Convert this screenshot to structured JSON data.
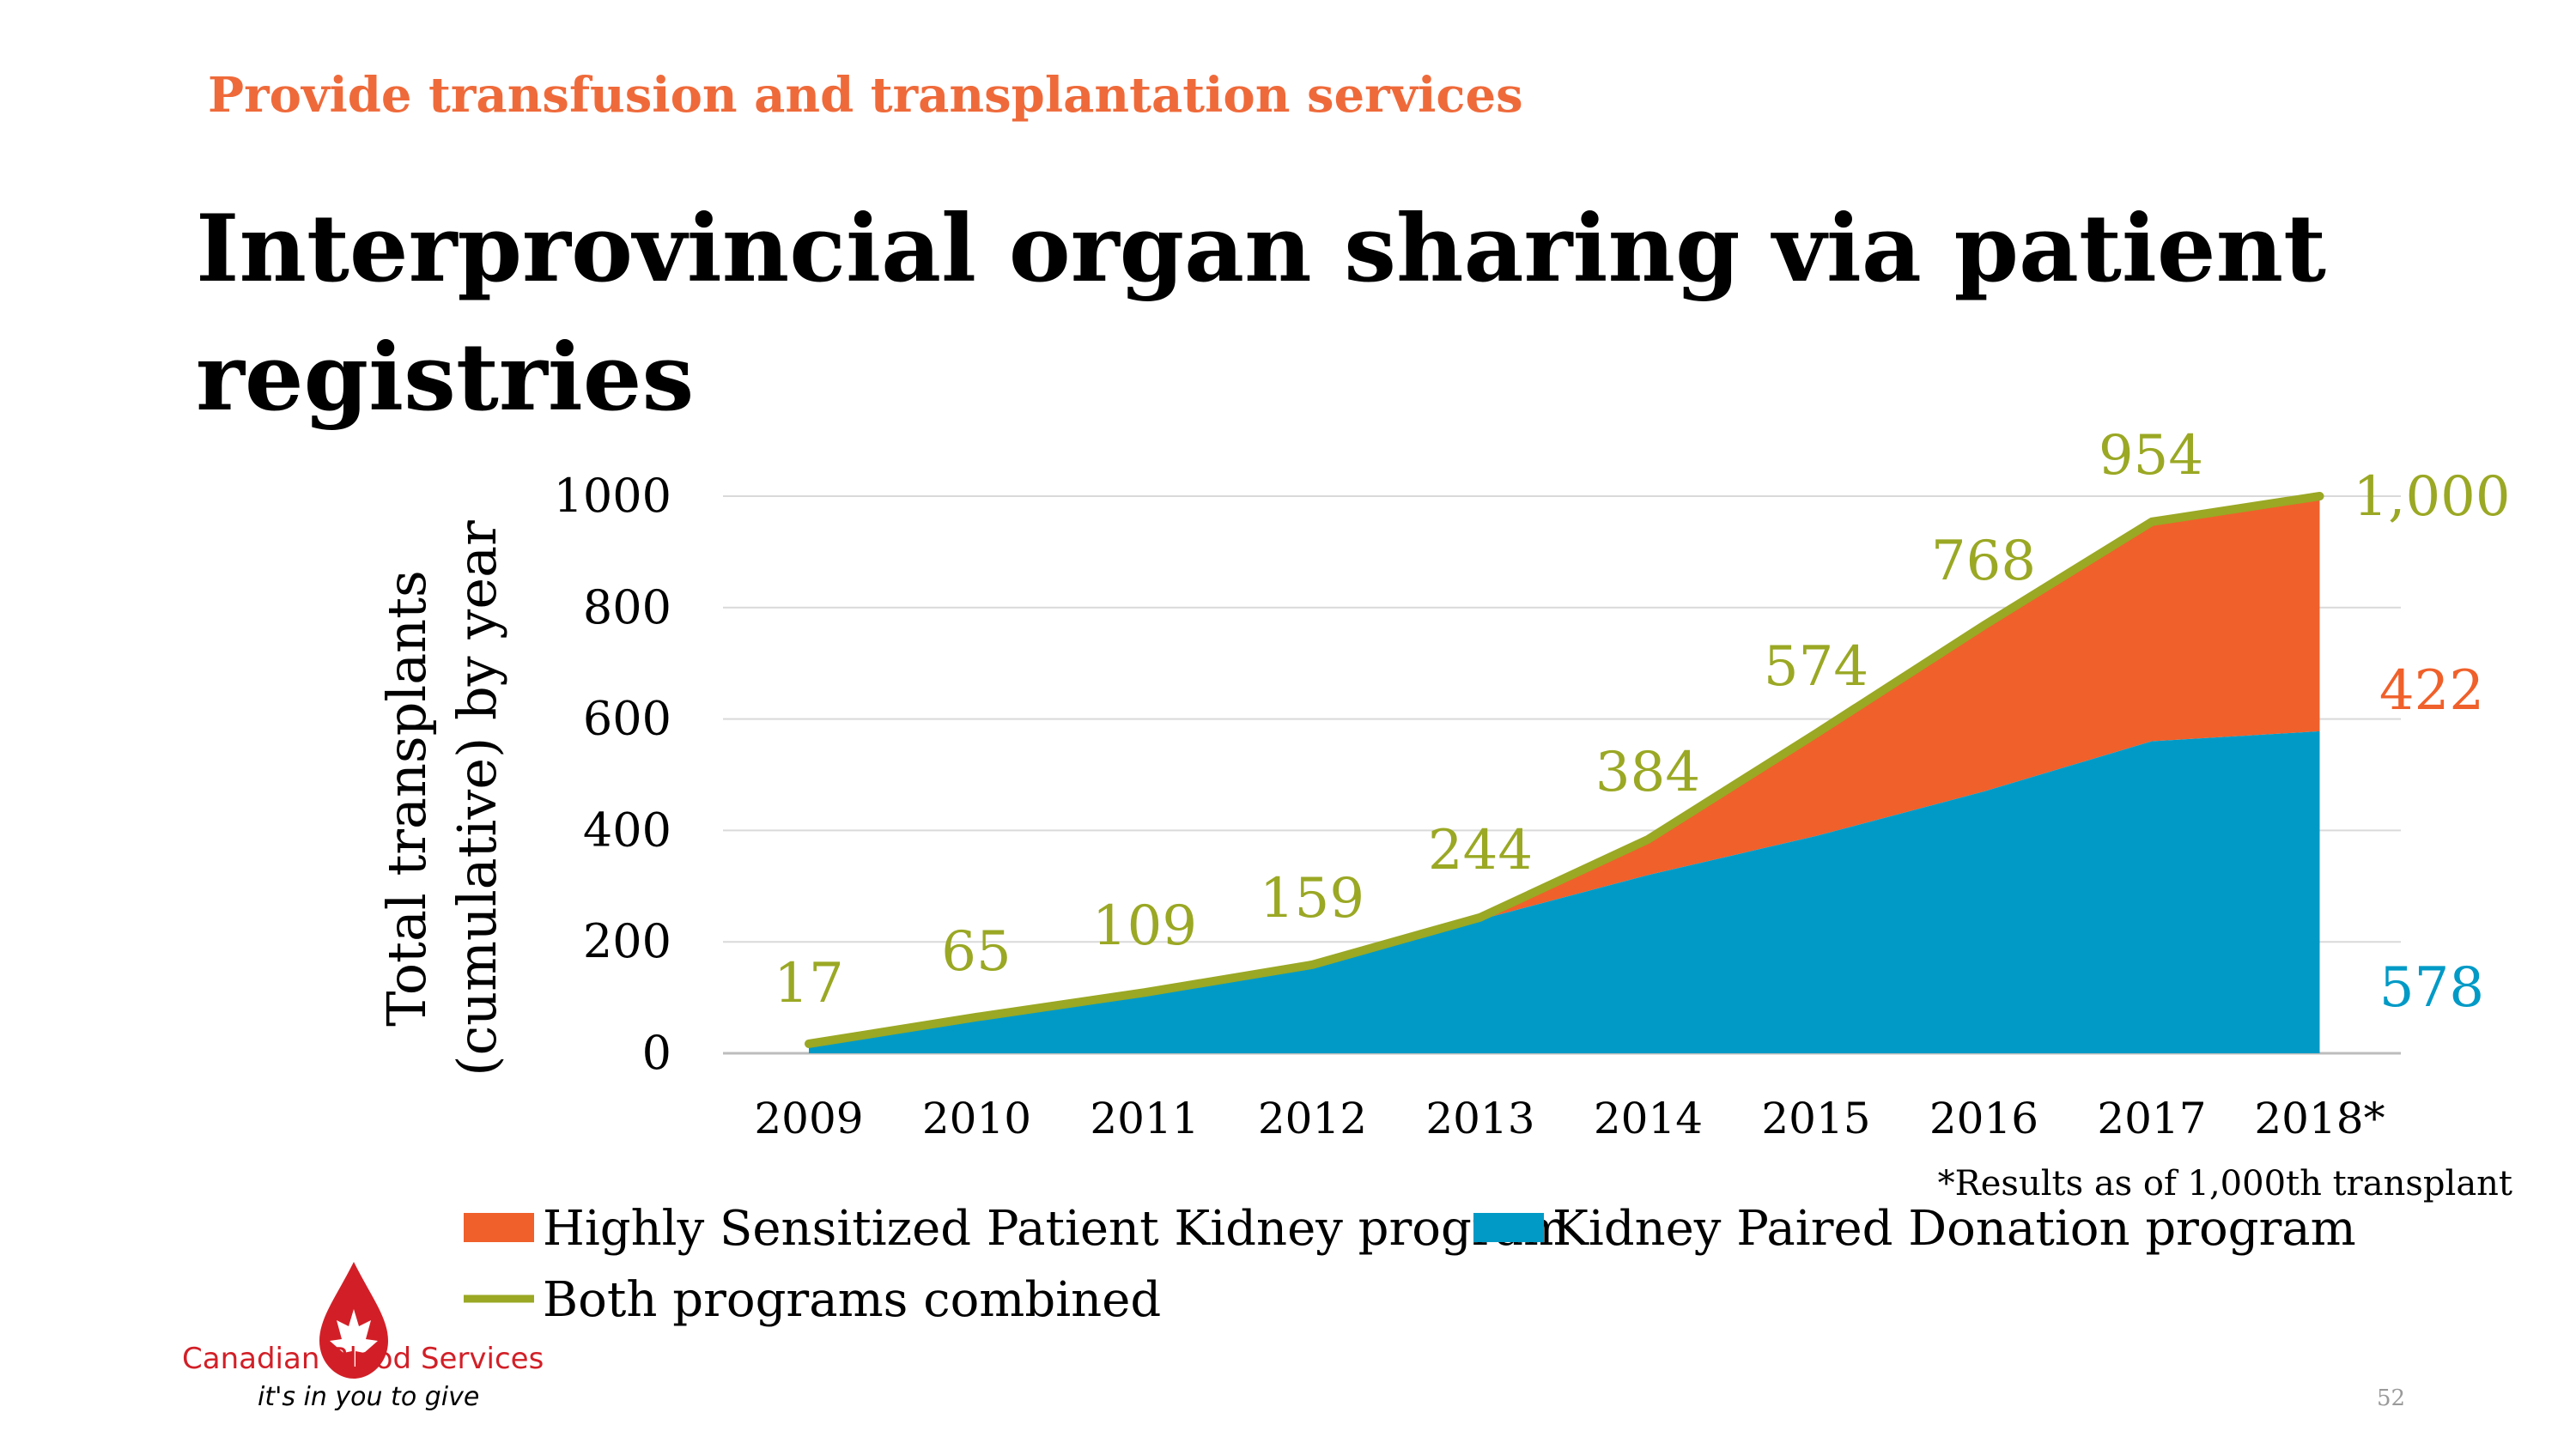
{
  "slide": {
    "kicker": "Provide transfusion and transplantation services",
    "title": "Interprovincial organ sharing via patient registries",
    "page_number": "52",
    "logo": {
      "name": "Canadian Blood Services",
      "tagline": "it's in you to give",
      "icon": "maple-leaf-blood-drop-icon"
    }
  },
  "chart_data": {
    "type": "area",
    "stacked": true,
    "categories": [
      "2009",
      "2010",
      "2011",
      "2012",
      "2013",
      "2014",
      "2015",
      "2016",
      "2017",
      "2018*"
    ],
    "series": [
      {
        "name": "Kidney Paired Donation program",
        "kind": "area",
        "color": "#019ac6",
        "values": [
          10,
          60,
          105,
          155,
          240,
          320,
          390,
          470,
          560,
          578
        ]
      },
      {
        "name": "Highly Sensitized Patient Kidney program",
        "kind": "area",
        "color": "#f0602a",
        "values": [
          7,
          5,
          4,
          4,
          4,
          64,
          184,
          298,
          394,
          422
        ]
      },
      {
        "name": "Both programs combined",
        "kind": "line",
        "color": "#9aa824",
        "values": [
          17,
          65,
          109,
          159,
          244,
          384,
          574,
          768,
          954,
          1000
        ]
      }
    ],
    "data_labels": {
      "combined": [
        "17",
        "65",
        "109",
        "159",
        "244",
        "384",
        "574",
        "768",
        "954",
        "1,000"
      ],
      "end_hsp": "422",
      "end_kpd": "578"
    },
    "ylabel": "Total transplants (cumulative) by year",
    "ylabel_lines": [
      "Total transplants",
      "(cumulative) by year"
    ],
    "y_ticks": [
      "0",
      "200",
      "400",
      "600",
      "800",
      "1000"
    ],
    "ylim": [
      0,
      1000
    ],
    "grid": true,
    "legend_placement": "bottom",
    "legend": [
      {
        "label": "Highly Sensitized Patient Kidney program",
        "color": "#f0602a",
        "symbol": "box"
      },
      {
        "label": "Kidney Paired Donation program",
        "color": "#019ac6",
        "symbol": "box"
      },
      {
        "label": "Both programs combined",
        "color": "#9aa824",
        "symbol": "line"
      }
    ],
    "footnote": "*Results as of 1,000th transplant"
  }
}
